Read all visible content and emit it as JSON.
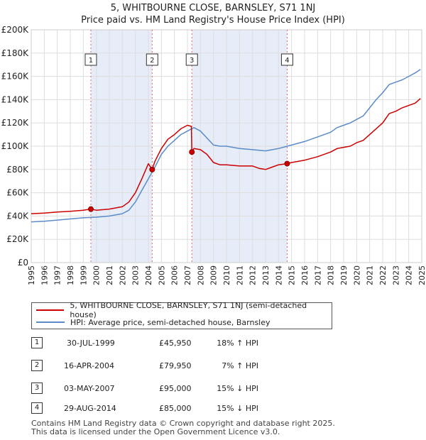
{
  "header": {
    "line1": "5, WHITBOURNE CLOSE, BARNSLEY, S71 1NJ",
    "line2": "Price paid vs. HM Land Registry's House Price Index (HPI)"
  },
  "colors": {
    "property": "#cc0000",
    "hpi": "#5b8bc9",
    "shade": "#dde6f6",
    "grid": "#dddddd",
    "marker_line": "#e06666"
  },
  "chart_data": {
    "type": "line",
    "title": "5, WHITBOURNE CLOSE, BARNSLEY, S71 1NJ — Price paid vs. HM Land Registry's House Price Index (HPI)",
    "xlim": [
      1995,
      2025
    ],
    "ylim": [
      0,
      200000
    ],
    "x_ticks": [
      "1995",
      "1996",
      "1997",
      "1998",
      "1999",
      "2000",
      "2001",
      "2002",
      "2003",
      "2004",
      "2005",
      "2006",
      "2007",
      "2008",
      "2009",
      "2010",
      "2011",
      "2012",
      "2013",
      "2014",
      "2015",
      "2016",
      "2017",
      "2018",
      "2019",
      "2020",
      "2021",
      "2022",
      "2023",
      "2024",
      "2025"
    ],
    "y_ticks": [
      {
        "value": 0,
        "label": "£0"
      },
      {
        "value": 20000,
        "label": "£20K"
      },
      {
        "value": 40000,
        "label": "£40K"
      },
      {
        "value": 60000,
        "label": "£60K"
      },
      {
        "value": 80000,
        "label": "£80K"
      },
      {
        "value": 100000,
        "label": "£100K"
      },
      {
        "value": 120000,
        "label": "£120K"
      },
      {
        "value": 140000,
        "label": "£140K"
      },
      {
        "value": 160000,
        "label": "£160K"
      },
      {
        "value": 180000,
        "label": "£180K"
      },
      {
        "value": 200000,
        "label": "£200K"
      }
    ],
    "shaded_ranges": [
      [
        1999.58,
        2004.29
      ],
      [
        2007.34,
        2014.66
      ]
    ],
    "sales": [
      {
        "label": "1",
        "x": 1999.58,
        "price": 45950
      },
      {
        "label": "2",
        "x": 2004.29,
        "price": 79950
      },
      {
        "label": "3",
        "x": 2007.34,
        "price": 95000
      },
      {
        "label": "4",
        "x": 2014.66,
        "price": 85000
      }
    ],
    "series": [
      {
        "name": "5, WHITBOURNE CLOSE, BARNSLEY, S71 1NJ (semi-detached house)",
        "color": "#cc0000",
        "x": [
          1995,
          1996,
          1997,
          1998,
          1999,
          1999.58,
          2000,
          2001,
          2002,
          2002.5,
          2003,
          2003.5,
          2004,
          2004.29,
          2004.5,
          2005,
          2005.5,
          2006,
          2006.5,
          2007,
          2007.3,
          2007.34,
          2007.5,
          2008,
          2008.5,
          2009,
          2009.5,
          2010,
          2011,
          2012,
          2012.5,
          2013,
          2013.5,
          2014,
          2014.66,
          2015,
          2016,
          2017,
          2018,
          2018.5,
          2019,
          2019.5,
          2020,
          2020.5,
          2021,
          2021.5,
          2022,
          2022.5,
          2023,
          2023.5,
          2024,
          2024.5,
          2024.9
        ],
        "values": [
          42000,
          42500,
          43500,
          44000,
          45000,
          45950,
          45000,
          46000,
          48000,
          52000,
          60000,
          72000,
          85000,
          79950,
          87000,
          98000,
          106000,
          110000,
          115000,
          118000,
          117000,
          95000,
          98000,
          97000,
          93000,
          86000,
          84000,
          84000,
          83000,
          83000,
          81000,
          80000,
          82000,
          84000,
          85000,
          86000,
          88000,
          91000,
          95000,
          98000,
          99000,
          100000,
          103000,
          105000,
          110000,
          115000,
          120000,
          128000,
          130000,
          133000,
          135000,
          137000,
          141000
        ]
      },
      {
        "name": "HPI: Average price, semi-detached house, Barnsley",
        "color": "#5b8bc9",
        "x": [
          1995,
          1996,
          1997,
          1998,
          1999,
          2000,
          2001,
          2002,
          2002.5,
          2003,
          2003.5,
          2004,
          2004.5,
          2005,
          2005.5,
          2006,
          2006.5,
          2007,
          2007.5,
          2008,
          2008.5,
          2009,
          2009.5,
          2010,
          2011,
          2012,
          2013,
          2014,
          2014.66,
          2015,
          2016,
          2017,
          2018,
          2018.5,
          2019,
          2019.5,
          2020,
          2020.5,
          2021,
          2021.5,
          2022,
          2022.5,
          2023,
          2023.5,
          2024,
          2024.5,
          2024.9
        ],
        "values": [
          35000,
          35500,
          36500,
          37500,
          38500,
          39000,
          40000,
          42000,
          45000,
          52000,
          62000,
          72000,
          82000,
          93000,
          100000,
          105000,
          110000,
          113000,
          116000,
          113000,
          107000,
          101000,
          100000,
          100000,
          98000,
          97000,
          96000,
          98000,
          100000,
          101000,
          104000,
          108000,
          112000,
          116000,
          118000,
          120000,
          123000,
          126000,
          133000,
          140000,
          146000,
          153000,
          155000,
          157000,
          160000,
          163000,
          166000
        ]
      }
    ]
  },
  "legend": {
    "items": [
      {
        "label": "5, WHITBOURNE CLOSE, BARNSLEY, S71 1NJ (semi-detached house)",
        "color": "#cc0000"
      },
      {
        "label": "HPI: Average price, semi-detached house, Barnsley",
        "color": "#5b8bc9"
      }
    ]
  },
  "transactions": [
    {
      "num": "1",
      "date": "30-JUL-1999",
      "price": "£45,950",
      "hpi": "18% ↑ HPI"
    },
    {
      "num": "2",
      "date": "16-APR-2004",
      "price": "£79,950",
      "hpi": "7% ↑ HPI"
    },
    {
      "num": "3",
      "date": "03-MAY-2007",
      "price": "£95,000",
      "hpi": "15% ↓ HPI"
    },
    {
      "num": "4",
      "date": "29-AUG-2014",
      "price": "£85,000",
      "hpi": "15% ↓ HPI"
    }
  ],
  "footer": {
    "line1": "Contains HM Land Registry data © Crown copyright and database right 2025.",
    "line2": "This data is licensed under the Open Government Licence v3.0."
  }
}
